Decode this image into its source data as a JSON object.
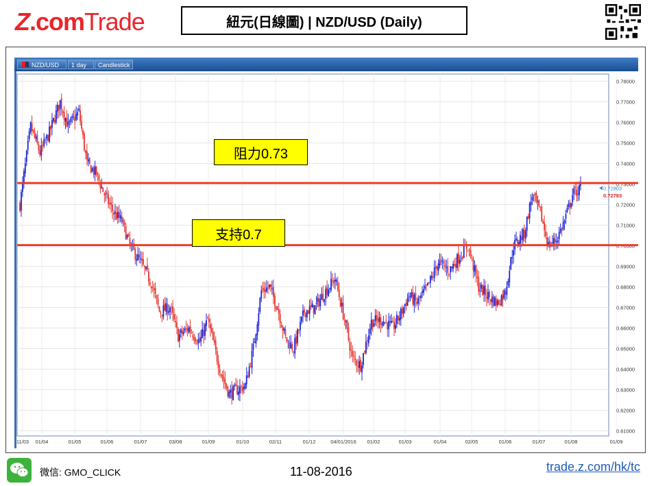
{
  "header": {
    "logo_z": "Z",
    "logo_com": ".com",
    "logo_trade": "Trade",
    "title": "紐元(日線圖) | NZD/USD  (Daily)"
  },
  "toolbar": {
    "symbol_tab": "NZD/USD",
    "interval_tab": "1 day",
    "style_tab": "Candlestick"
  },
  "annotations": {
    "resistance": "阻力0.73",
    "support": "支持0.7"
  },
  "footer": {
    "wechat": "微信: GMO_CLICK",
    "date": "11-08-2016",
    "site": "trade.z.com/hk/tc"
  },
  "colors": {
    "up": "#1a22d6",
    "down": "#e8322b",
    "level_line": "#ef3b24",
    "note_bg": "#ffff00",
    "brand": "#e8262c",
    "link": "#1f5bb5"
  },
  "chart_data": {
    "type": "candlestick",
    "title": "",
    "xlabel": "",
    "ylabel": "",
    "ylim": [
      0.6075,
      0.7835
    ],
    "y_ticks": [
      "0.78000",
      "0.77000",
      "0.76000",
      "0.75000",
      "0.74000",
      "0.73000",
      "0.72000",
      "0.71000",
      "0.70000",
      "0.69000",
      "0.68000",
      "0.67000",
      "0.66000",
      "0.65000",
      "0.64000",
      "0.63000",
      "0.62000",
      "0.61000"
    ],
    "x_ticks": [
      "11/03",
      "01/04",
      "01/05",
      "01/06",
      "01/07",
      "03/08",
      "01/09",
      "01/10",
      "02/11",
      "01/12",
      "04/01/2016",
      "01/02",
      "01/03",
      "01/04",
      "02/05",
      "01/06",
      "01/07",
      "01/08",
      "01/09"
    ],
    "price_labels": {
      "current": "0.72803",
      "previous": "0.72783"
    },
    "horizontal_levels": [
      {
        "label": "阻力0.73",
        "value": 0.7305
      },
      {
        "label": "支持0.7",
        "value": 0.7003
      }
    ],
    "close_path": [
      [
        0,
        0.72
      ],
      [
        8,
        0.758
      ],
      [
        15,
        0.745
      ],
      [
        22,
        0.755
      ],
      [
        30,
        0.77
      ],
      [
        36,
        0.758
      ],
      [
        44,
        0.765
      ],
      [
        50,
        0.74
      ],
      [
        57,
        0.735
      ],
      [
        63,
        0.725
      ],
      [
        70,
        0.716
      ],
      [
        76,
        0.712
      ],
      [
        82,
        0.7
      ],
      [
        90,
        0.692
      ],
      [
        98,
        0.682
      ],
      [
        104,
        0.668
      ],
      [
        112,
        0.67
      ],
      [
        118,
        0.656
      ],
      [
        126,
        0.66
      ],
      [
        134,
        0.653
      ],
      [
        140,
        0.664
      ],
      [
        146,
        0.648
      ],
      [
        150,
        0.638
      ],
      [
        156,
        0.628
      ],
      [
        162,
        0.63
      ],
      [
        168,
        0.632
      ],
      [
        174,
        0.65
      ],
      [
        180,
        0.678
      ],
      [
        186,
        0.68
      ],
      [
        192,
        0.67
      ],
      [
        198,
        0.655
      ],
      [
        204,
        0.65
      ],
      [
        212,
        0.668
      ],
      [
        220,
        0.67
      ],
      [
        228,
        0.678
      ],
      [
        235,
        0.684
      ],
      [
        242,
        0.664
      ],
      [
        248,
        0.645
      ],
      [
        254,
        0.642
      ],
      [
        262,
        0.663
      ],
      [
        270,
        0.664
      ],
      [
        278,
        0.66
      ],
      [
        284,
        0.667
      ],
      [
        290,
        0.676
      ],
      [
        296,
        0.672
      ],
      [
        304,
        0.68
      ],
      [
        312,
        0.692
      ],
      [
        320,
        0.688
      ],
      [
        328,
        0.695
      ],
      [
        334,
        0.7
      ],
      [
        342,
        0.68
      ],
      [
        350,
        0.675
      ],
      [
        356,
        0.672
      ],
      [
        362,
        0.678
      ],
      [
        368,
        0.7
      ],
      [
        376,
        0.706
      ],
      [
        382,
        0.725
      ],
      [
        388,
        0.716
      ],
      [
        394,
        0.7
      ],
      [
        400,
        0.703
      ],
      [
        406,
        0.712
      ],
      [
        412,
        0.725
      ],
      [
        418,
        0.728
      ]
    ]
  }
}
